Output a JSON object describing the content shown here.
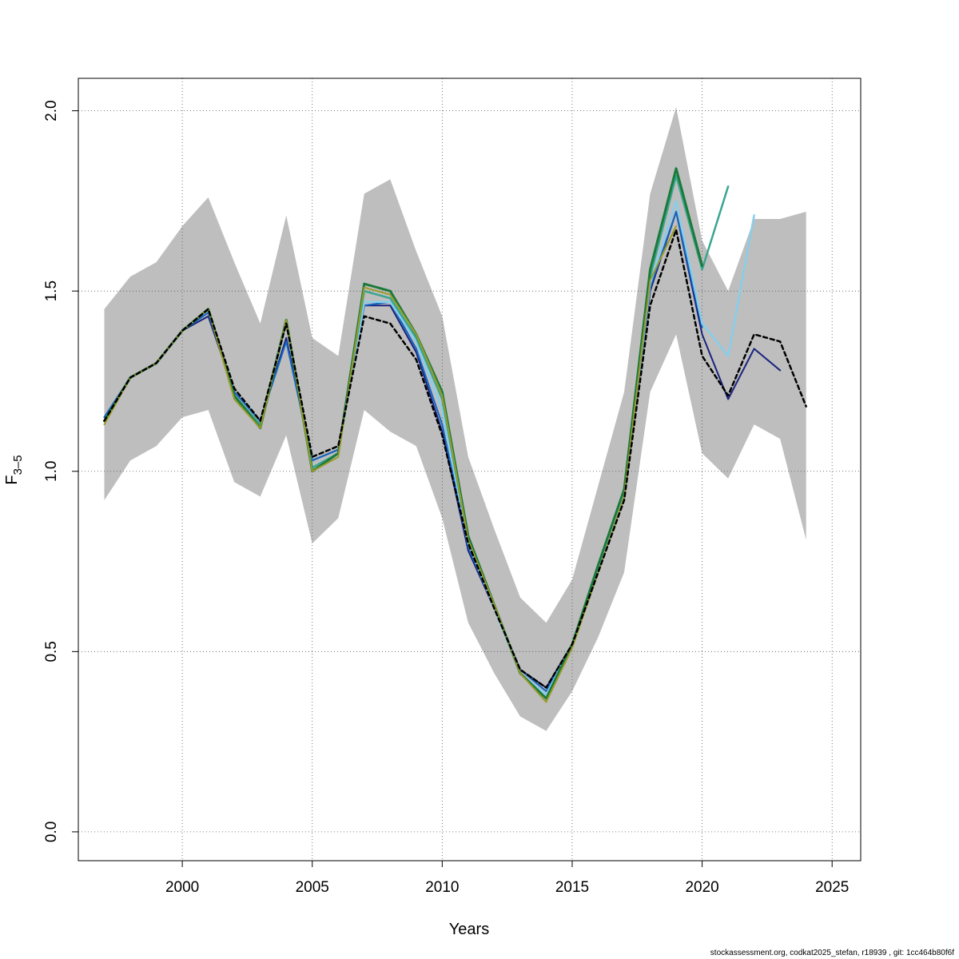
{
  "chart_data": {
    "type": "line",
    "xlabel": "Years",
    "ylabel": {
      "main": "F",
      "sub": "3–5"
    },
    "xlim": [
      1996,
      2026.1
    ],
    "ylim": [
      -0.08,
      2.09
    ],
    "xticks": [
      2000,
      2005,
      2010,
      2015,
      2020,
      2025
    ],
    "yticks": [
      0.0,
      0.5,
      1.0,
      1.5,
      2.0
    ],
    "ytick_labels": [
      "0.0",
      "0.5",
      "1.0",
      "1.5",
      "2.0"
    ],
    "grid": true,
    "confidence_band": {
      "color": "#bebebe",
      "x": [
        1997,
        1998,
        1999,
        2000,
        2001,
        2002,
        2003,
        2004,
        2005,
        2006,
        2007,
        2008,
        2009,
        2010,
        2011,
        2012,
        2013,
        2014,
        2015,
        2016,
        2017,
        2018,
        2019,
        2020,
        2021,
        2022,
        2023,
        2024
      ],
      "lower": [
        0.92,
        1.03,
        1.07,
        1.15,
        1.17,
        0.97,
        0.93,
        1.1,
        0.8,
        0.87,
        1.17,
        1.11,
        1.07,
        0.87,
        0.58,
        0.44,
        0.32,
        0.28,
        0.39,
        0.54,
        0.72,
        1.22,
        1.38,
        1.05,
        0.98,
        1.13,
        1.09,
        0.81
      ],
      "upper": [
        1.45,
        1.54,
        1.58,
        1.68,
        1.76,
        1.58,
        1.41,
        1.71,
        1.37,
        1.32,
        1.77,
        1.81,
        1.61,
        1.43,
        1.04,
        0.84,
        0.65,
        0.58,
        0.7,
        0.96,
        1.22,
        1.77,
        2.01,
        1.64,
        1.5,
        1.7,
        1.7,
        1.72
      ]
    },
    "series": [
      {
        "color": "#1a237e",
        "width": 2,
        "x": [
          1997,
          1998,
          1999,
          2000,
          2001,
          2002,
          2003,
          2004,
          2005,
          2006,
          2007,
          2008,
          2009,
          2010,
          2011,
          2012,
          2013,
          2014,
          2015,
          2016,
          2017,
          2018,
          2019,
          2020,
          2021,
          2022,
          2023
        ],
        "values": [
          1.15,
          1.26,
          1.3,
          1.39,
          1.43,
          1.22,
          1.14,
          1.37,
          1.03,
          1.06,
          1.46,
          1.46,
          1.33,
          1.11,
          0.78,
          0.62,
          0.45,
          0.4,
          0.52,
          0.73,
          0.93,
          1.5,
          1.72,
          1.38,
          1.2,
          1.34,
          1.28
        ]
      },
      {
        "color": "#1565c0",
        "width": 2,
        "x": [
          1997,
          1998,
          1999,
          2000,
          2001,
          2002,
          2003,
          2004,
          2005,
          2006,
          2007,
          2008,
          2009,
          2010,
          2011,
          2012,
          2013,
          2014,
          2015,
          2016,
          2017,
          2018,
          2019,
          2020
        ],
        "values": [
          1.15,
          1.26,
          1.3,
          1.39,
          1.44,
          1.22,
          1.14,
          1.36,
          1.03,
          1.06,
          1.46,
          1.47,
          1.34,
          1.13,
          0.79,
          0.62,
          0.45,
          0.39,
          0.52,
          0.73,
          0.93,
          1.51,
          1.72,
          1.4
        ]
      },
      {
        "color": "#87ceeb",
        "width": 2.5,
        "x": [
          1997,
          1998,
          1999,
          2000,
          2001,
          2002,
          2003,
          2004,
          2005,
          2006,
          2007,
          2008,
          2009,
          2010,
          2011,
          2012,
          2013,
          2014,
          2015,
          2016,
          2017,
          2018,
          2019,
          2020,
          2021,
          2022
        ],
        "values": [
          1.14,
          1.26,
          1.3,
          1.39,
          1.45,
          1.21,
          1.13,
          1.42,
          1.01,
          1.05,
          1.47,
          1.47,
          1.36,
          1.17,
          0.8,
          0.62,
          0.44,
          0.38,
          0.52,
          0.73,
          0.94,
          1.52,
          1.75,
          1.41,
          1.32,
          1.71
        ]
      },
      {
        "color": "#3aa58f",
        "width": 2.5,
        "x": [
          1997,
          1998,
          1999,
          2000,
          2001,
          2002,
          2003,
          2004,
          2005,
          2006,
          2007,
          2008,
          2009,
          2010,
          2011,
          2012,
          2013,
          2014,
          2015,
          2016,
          2017,
          2018,
          2019,
          2020,
          2021
        ],
        "values": [
          1.14,
          1.26,
          1.3,
          1.39,
          1.45,
          1.21,
          1.13,
          1.42,
          1.01,
          1.05,
          1.5,
          1.48,
          1.37,
          1.2,
          0.81,
          0.63,
          0.44,
          0.37,
          0.52,
          0.74,
          0.95,
          1.54,
          1.82,
          1.56,
          1.79
        ]
      },
      {
        "color": "#1b7a3a",
        "width": 3,
        "x": [
          1997,
          1998,
          1999,
          2000,
          2001,
          2002,
          2003,
          2004,
          2005,
          2006,
          2007,
          2008,
          2009,
          2010,
          2011,
          2012,
          2013,
          2014,
          2015,
          2016,
          2017,
          2018,
          2019,
          2020
        ],
        "values": [
          1.14,
          1.26,
          1.3,
          1.39,
          1.45,
          1.21,
          1.12,
          1.42,
          1.0,
          1.05,
          1.52,
          1.5,
          1.38,
          1.22,
          0.82,
          0.63,
          0.44,
          0.37,
          0.52,
          0.74,
          0.95,
          1.56,
          1.84,
          1.57
        ]
      },
      {
        "color": "#9a9a2a",
        "width": 2,
        "x": [
          1997,
          1998,
          1999,
          2000,
          2001,
          2002,
          2003,
          2004,
          2005,
          2006,
          2007,
          2008,
          2009,
          2010,
          2011,
          2012,
          2013,
          2014,
          2015,
          2016,
          2017,
          2018,
          2019
        ],
        "values": [
          1.13,
          1.26,
          1.3,
          1.39,
          1.45,
          1.2,
          1.12,
          1.42,
          1.0,
          1.04,
          1.51,
          1.49,
          1.38,
          1.21,
          0.81,
          0.63,
          0.44,
          0.36,
          0.51,
          0.72,
          0.93,
          1.53,
          1.68
        ]
      },
      {
        "color": "#000000",
        "width": 2.5,
        "dashed": true,
        "x": [
          1997,
          1998,
          1999,
          2000,
          2001,
          2002,
          2003,
          2004,
          2005,
          2006,
          2007,
          2008,
          2009,
          2010,
          2011,
          2012,
          2013,
          2014,
          2015,
          2016,
          2017,
          2018,
          2019,
          2020,
          2021,
          2022,
          2023,
          2024
        ],
        "values": [
          1.14,
          1.26,
          1.3,
          1.39,
          1.45,
          1.23,
          1.14,
          1.41,
          1.04,
          1.07,
          1.43,
          1.41,
          1.31,
          1.1,
          0.8,
          0.62,
          0.45,
          0.4,
          0.52,
          0.72,
          0.92,
          1.46,
          1.67,
          1.32,
          1.21,
          1.38,
          1.36,
          1.18
        ]
      }
    ]
  },
  "footer": {
    "text": "stockassessment.org, codkat2025_stefan, r18939 , git: 1cc464b80f6f"
  }
}
